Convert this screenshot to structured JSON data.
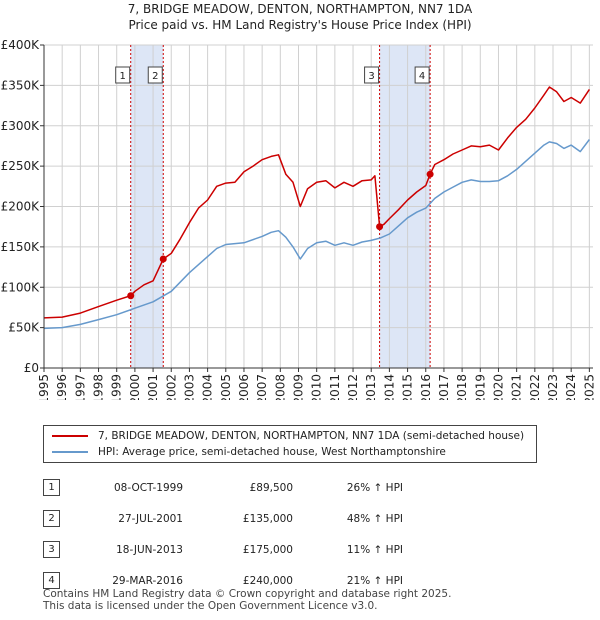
{
  "chart_data": {
    "type": "line",
    "title": "7, BRIDGE MEADOW, DENTON, NORTHAMPTON, NN7 1DA",
    "subtitle": "Price paid vs. HM Land Registry's House Price Index (HPI)",
    "xlim": [
      1995,
      2025.2
    ],
    "ylim": [
      0,
      400000
    ],
    "xticks": [
      1995,
      1996,
      1997,
      1998,
      1999,
      2000,
      2001,
      2002,
      2003,
      2004,
      2005,
      2006,
      2007,
      2008,
      2009,
      2010,
      2011,
      2012,
      2013,
      2014,
      2015,
      2016,
      2017,
      2018,
      2019,
      2020,
      2021,
      2022,
      2023,
      2024,
      2025
    ],
    "ytick_values": [
      0,
      50000,
      100000,
      150000,
      200000,
      250000,
      300000,
      350000,
      400000
    ],
    "ytick_labels": [
      "£0",
      "£50K",
      "£100K",
      "£150K",
      "£200K",
      "£250K",
      "£300K",
      "£350K",
      "£400K"
    ],
    "grid": true,
    "series": [
      {
        "name": "7, BRIDGE MEADOW, DENTON, NORTHAMPTON, NN7 1DA (semi-detached house)",
        "color": "#cc0000",
        "x": [
          1995,
          1996,
          1997,
          1998,
          1999,
          1999.77,
          2000,
          2000.5,
          2001,
          2001.56,
          2002,
          2002.5,
          2003,
          2003.5,
          2004,
          2004.5,
          2005,
          2005.5,
          2006,
          2006.5,
          2007,
          2007.5,
          2007.9,
          2008.3,
          2008.7,
          2009.1,
          2009.5,
          2010,
          2010.5,
          2011,
          2011.5,
          2012,
          2012.5,
          2013,
          2013.2,
          2013.46,
          2013.7,
          2014,
          2014.5,
          2015,
          2015.5,
          2016,
          2016.24,
          2016.5,
          2017,
          2017.5,
          2018,
          2018.5,
          2019,
          2019.5,
          2020,
          2020.5,
          2021,
          2021.5,
          2022,
          2022.5,
          2022.8,
          2023.2,
          2023.6,
          2024,
          2024.5,
          2025
        ],
        "y": [
          62000,
          63000,
          68000,
          76000,
          84000,
          89500,
          95000,
          103000,
          108000,
          135000,
          142000,
          160000,
          180000,
          198000,
          208000,
          225000,
          229000,
          230000,
          243000,
          250000,
          258000,
          262000,
          264000,
          240000,
          230000,
          200000,
          222000,
          230000,
          232000,
          223000,
          230000,
          225000,
          232000,
          233000,
          238000,
          175000,
          178000,
          185000,
          196000,
          208000,
          218000,
          226000,
          240000,
          252000,
          258000,
          265000,
          270000,
          275000,
          274000,
          276000,
          270000,
          285000,
          298000,
          308000,
          322000,
          338000,
          348000,
          342000,
          330000,
          335000,
          328000,
          345000
        ]
      },
      {
        "name": "HPI: Average price, semi-detached house, West Northamptonshire",
        "color": "#6699cc",
        "x": [
          1995,
          1996,
          1997,
          1998,
          1999,
          2000,
          2001,
          2002,
          2003,
          2004,
          2004.5,
          2005,
          2006,
          2007,
          2007.5,
          2007.9,
          2008.3,
          2008.7,
          2009.1,
          2009.5,
          2010,
          2010.5,
          2011,
          2011.5,
          2012,
          2012.5,
          2013,
          2013.5,
          2014,
          2014.5,
          2015,
          2015.5,
          2016,
          2016.5,
          2017,
          2017.5,
          2018,
          2018.5,
          2019,
          2019.5,
          2020,
          2020.5,
          2021,
          2021.5,
          2022,
          2022.5,
          2022.8,
          2023.2,
          2023.6,
          2024,
          2024.5,
          2025
        ],
        "y": [
          49000,
          50000,
          54000,
          60000,
          66000,
          74000,
          82000,
          95000,
          118000,
          138000,
          148000,
          153000,
          155000,
          163000,
          168000,
          170000,
          162000,
          150000,
          135000,
          148000,
          155000,
          157000,
          152000,
          155000,
          152000,
          156000,
          158000,
          161000,
          166000,
          176000,
          186000,
          193000,
          198000,
          210000,
          218000,
          224000,
          230000,
          233000,
          231000,
          231000,
          232000,
          238000,
          246000,
          256000,
          266000,
          276000,
          280000,
          278000,
          272000,
          276000,
          268000,
          283000
        ]
      }
    ],
    "sales": [
      {
        "label": "1",
        "year": 1999.77,
        "price": 89500
      },
      {
        "label": "2",
        "year": 2001.56,
        "price": 135000
      },
      {
        "label": "3",
        "year": 2013.46,
        "price": 175000
      },
      {
        "label": "4",
        "year": 2016.24,
        "price": 240000
      }
    ],
    "shaded_ranges": [
      [
        1999.77,
        2001.56
      ],
      [
        2013.46,
        2016.24
      ]
    ],
    "shade_color": "#dde6f6",
    "sale_line_color": "#cc0000",
    "axis_color": "#333333",
    "grid_color": "#d0d0d0",
    "badge_border_color": "#cc0000"
  },
  "header": {
    "title": "7, BRIDGE MEADOW, DENTON, NORTHAMPTON, NN7 1DA",
    "subtitle": "Price paid vs. HM Land Registry's House Price Index (HPI)"
  },
  "legend": {
    "items": [
      {
        "label": "7, BRIDGE MEADOW, DENTON, NORTHAMPTON, NN7 1DA (semi-detached house)",
        "color": "#cc0000"
      },
      {
        "label": "HPI: Average price, semi-detached house, West Northamptonshire",
        "color": "#6699cc"
      }
    ]
  },
  "transactions": [
    {
      "num": "1",
      "date": "08-OCT-1999",
      "price": "£89,500",
      "hpi": "26% ↑ HPI"
    },
    {
      "num": "2",
      "date": "27-JUL-2001",
      "price": "£135,000",
      "hpi": "48% ↑ HPI"
    },
    {
      "num": "3",
      "date": "18-JUN-2013",
      "price": "£175,000",
      "hpi": "11% ↑ HPI"
    },
    {
      "num": "4",
      "date": "29-MAR-2016",
      "price": "£240,000",
      "hpi": "21% ↑ HPI"
    }
  ],
  "footer": {
    "line1": "Contains HM Land Registry data © Crown copyright and database right 2025.",
    "line2": "This data is licensed under the Open Government Licence v3.0."
  }
}
